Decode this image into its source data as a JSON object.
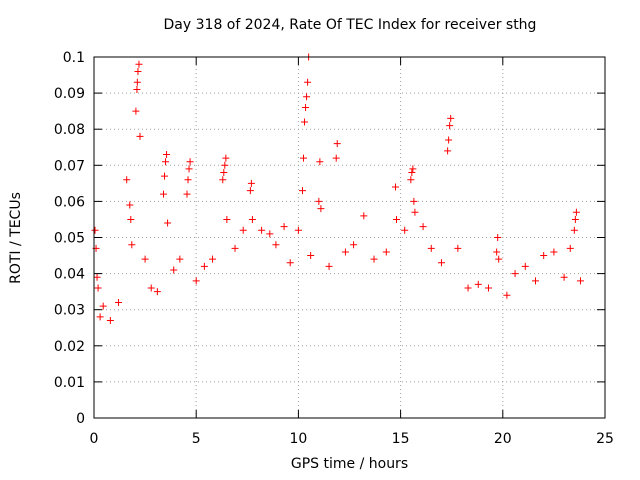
{
  "chart_data": {
    "type": "scatter",
    "title": "Day 318 of 2024, Rate Of TEC Index for receiver sthg",
    "xlabel": "GPS time / hours",
    "ylabel": "ROTI / TECUs",
    "xlim": [
      0,
      25
    ],
    "ylim": [
      0,
      0.1
    ],
    "x_ticks": [
      "0",
      "5",
      "10",
      "15",
      "20",
      "25"
    ],
    "y_ticks": [
      "0",
      "0.01",
      "0.02",
      "0.03",
      "0.04",
      "0.05",
      "0.06",
      "0.07",
      "0.08",
      "0.09",
      "0.1"
    ],
    "x_tick_values": [
      0,
      5,
      10,
      15,
      20,
      25
    ],
    "y_tick_values": [
      0,
      0.01,
      0.02,
      0.03,
      0.04,
      0.05,
      0.06,
      0.07,
      0.08,
      0.09,
      0.1
    ],
    "grid": true,
    "marker": "+",
    "color": "#ff0000",
    "series": [
      {
        "x": [
          0.05,
          0.1,
          0.15,
          0.2,
          0.3,
          0.45,
          0.8,
          1.2,
          1.6,
          1.75,
          1.8,
          1.85,
          2.05,
          2.1,
          2.12,
          2.15,
          2.2,
          2.25,
          2.5,
          2.8,
          3.1,
          3.4,
          3.45,
          3.5,
          3.55,
          3.6,
          3.9,
          4.2,
          4.55,
          4.6,
          4.65,
          4.7,
          5.0,
          5.4,
          5.8,
          6.3,
          6.35,
          6.4,
          6.45,
          6.5,
          6.9,
          7.3,
          7.65,
          7.7,
          7.75,
          8.2,
          8.6,
          8.9,
          9.3,
          9.6,
          10.0,
          10.2,
          10.25,
          10.3,
          10.35,
          10.4,
          10.45,
          10.5,
          10.6,
          11.0,
          11.05,
          11.1,
          11.5,
          11.85,
          11.9,
          12.3,
          12.7,
          13.2,
          13.7,
          14.3,
          14.75,
          14.8,
          15.2,
          15.5,
          15.55,
          15.6,
          15.65,
          15.7,
          16.1,
          16.5,
          17.0,
          17.3,
          17.35,
          17.4,
          17.45,
          17.8,
          18.3,
          18.8,
          19.3,
          19.7,
          19.75,
          19.8,
          20.2,
          20.6,
          21.1,
          21.6,
          22.0,
          22.5,
          23.0,
          23.3,
          23.5,
          23.55,
          23.6,
          23.8
        ],
        "y": [
          0.052,
          0.047,
          0.039,
          0.036,
          0.028,
          0.031,
          0.027,
          0.032,
          0.066,
          0.059,
          0.055,
          0.048,
          0.085,
          0.091,
          0.093,
          0.096,
          0.098,
          0.078,
          0.044,
          0.036,
          0.035,
          0.062,
          0.067,
          0.071,
          0.073,
          0.054,
          0.041,
          0.044,
          0.062,
          0.066,
          0.069,
          0.071,
          0.038,
          0.042,
          0.044,
          0.066,
          0.068,
          0.07,
          0.072,
          0.055,
          0.047,
          0.052,
          0.063,
          0.065,
          0.055,
          0.052,
          0.051,
          0.048,
          0.053,
          0.043,
          0.052,
          0.063,
          0.072,
          0.082,
          0.086,
          0.089,
          0.093,
          0.1,
          0.045,
          0.06,
          0.071,
          0.058,
          0.042,
          0.072,
          0.076,
          0.046,
          0.048,
          0.056,
          0.044,
          0.046,
          0.064,
          0.055,
          0.052,
          0.066,
          0.068,
          0.069,
          0.06,
          0.057,
          0.053,
          0.047,
          0.043,
          0.074,
          0.077,
          0.081,
          0.083,
          0.047,
          0.036,
          0.037,
          0.036,
          0.046,
          0.05,
          0.044,
          0.034,
          0.04,
          0.042,
          0.038,
          0.045,
          0.046,
          0.039,
          0.047,
          0.052,
          0.055,
          0.057,
          0.038
        ]
      }
    ]
  }
}
